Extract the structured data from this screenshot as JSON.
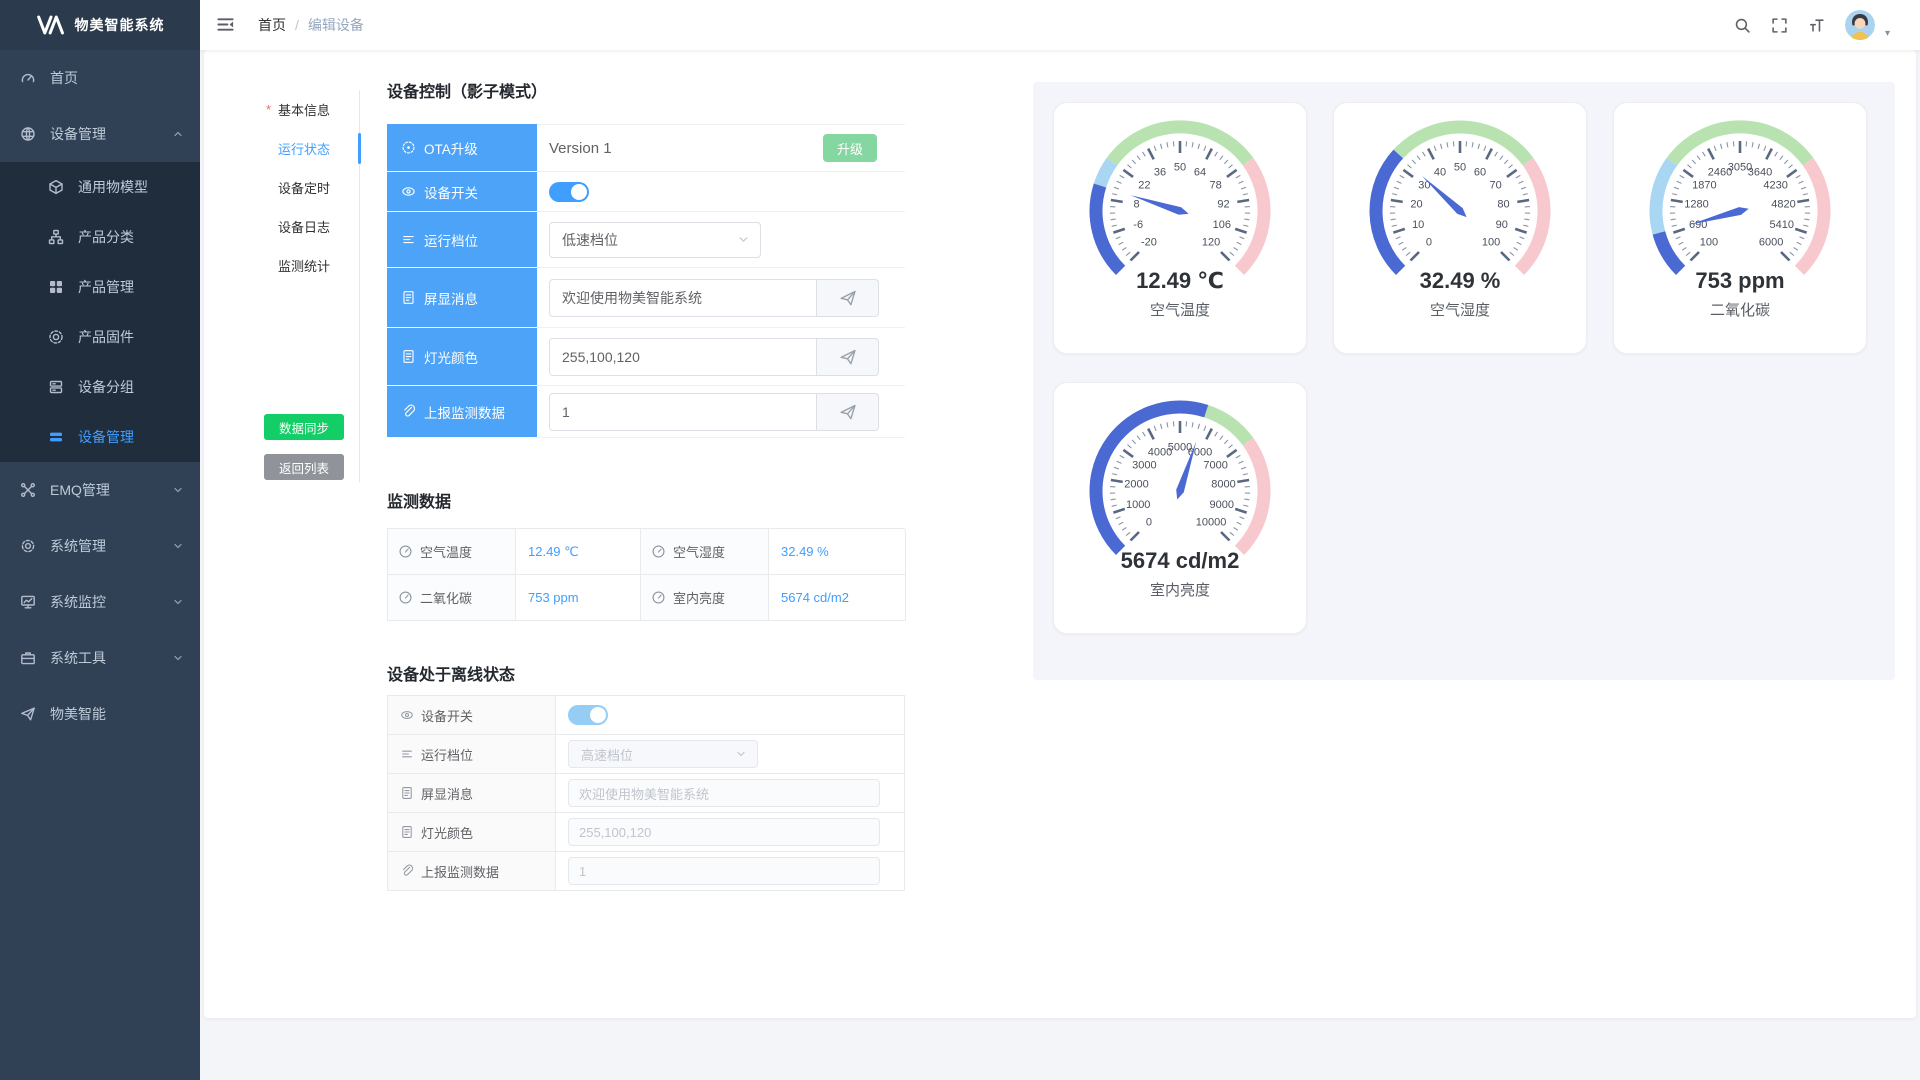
{
  "app": {
    "title": "物美智能系统"
  },
  "header": {
    "breadcrumb": [
      "首页",
      "编辑设备"
    ],
    "right_icons": [
      "search-icon",
      "fullscreen-icon",
      "font-size-icon",
      "avatar",
      "caret-down-icon"
    ]
  },
  "sidebar": {
    "items": [
      {
        "label": "首页",
        "icon": "dashboard-icon"
      },
      {
        "label": "设备管理",
        "icon": "devices-icon",
        "state": "expanded",
        "children": [
          {
            "label": "通用物模型",
            "icon": "cube-icon"
          },
          {
            "label": "产品分类",
            "icon": "sitemap-icon"
          },
          {
            "label": "产品管理",
            "icon": "grid-icon"
          },
          {
            "label": "产品固件",
            "icon": "firmware-icon"
          },
          {
            "label": "设备分组",
            "icon": "server-icon"
          },
          {
            "label": "设备管理",
            "icon": "list-icon",
            "active": true
          }
        ]
      },
      {
        "label": "EMQ管理",
        "icon": "emq-icon",
        "state": "collapsed"
      },
      {
        "label": "系统管理",
        "icon": "gear-icon",
        "state": "collapsed"
      },
      {
        "label": "系统监控",
        "icon": "monitor-icon",
        "state": "collapsed"
      },
      {
        "label": "系统工具",
        "icon": "toolbox-icon",
        "state": "collapsed"
      },
      {
        "label": "物美智能",
        "icon": "send-icon"
      }
    ]
  },
  "anchor": {
    "items": [
      {
        "label": "基本信息",
        "required": true
      },
      {
        "label": "运行状态",
        "active": true
      },
      {
        "label": "设备定时"
      },
      {
        "label": "设备日志"
      },
      {
        "label": "监测统计"
      }
    ],
    "sync_button": "数据同步",
    "back_button": "返回列表"
  },
  "shadow": {
    "title": "设备控制（影子模式）",
    "rows": [
      {
        "icon": "clock-icon",
        "label": "OTA升级",
        "type": "text_button",
        "value": "Version 1",
        "button": "升级"
      },
      {
        "icon": "eye-icon",
        "label": "设备开关",
        "type": "toggle",
        "on": true
      },
      {
        "icon": "lines-icon",
        "label": "运行档位",
        "type": "select",
        "value": "低速档位"
      },
      {
        "icon": "doc-icon",
        "label": "屏显消息",
        "type": "input_send",
        "value": "欢迎使用物美智能系统"
      },
      {
        "icon": "doc-icon",
        "label": "灯光颜色",
        "type": "input_send",
        "value": "255,100,120"
      },
      {
        "icon": "clip-icon",
        "label": "上报监测数据",
        "type": "input_send",
        "value": "1"
      }
    ]
  },
  "monitor": {
    "title": "监测数据",
    "cells": [
      {
        "icon": "gauge-mini-icon",
        "label": "空气温度",
        "value": "12.49 ℃"
      },
      {
        "icon": "gauge-mini-icon",
        "label": "空气湿度",
        "value": "32.49 %"
      },
      {
        "icon": "gauge-mini-icon",
        "label": "二氧化碳",
        "value": "753 ppm"
      },
      {
        "icon": "gauge-mini-icon",
        "label": "室内亮度",
        "value": "5674 cd/m2"
      }
    ]
  },
  "offline": {
    "title": "设备处于离线状态",
    "rows": [
      {
        "icon": "eye-icon",
        "label": "设备开关",
        "type": "toggle",
        "on": true
      },
      {
        "icon": "lines-icon",
        "label": "运行档位",
        "type": "select",
        "value": "高速档位"
      },
      {
        "icon": "doc-icon",
        "label": "屏显消息",
        "type": "input",
        "value": "欢迎使用物美智能系统"
      },
      {
        "icon": "doc-icon",
        "label": "灯光颜色",
        "type": "input",
        "value": "255,100,120"
      },
      {
        "icon": "clip-icon",
        "label": "上报监测数据",
        "type": "input",
        "value": "1"
      }
    ]
  },
  "chart_data": [
    {
      "type": "gauge",
      "title": "空气温度",
      "value": 12.49,
      "display": "12.49 ℃",
      "min": -20,
      "max": 120,
      "tick_labels": [
        "-20",
        "-6",
        "8",
        "22",
        "36",
        "50",
        "64",
        "78",
        "92",
        "106",
        "120"
      ],
      "segments": [
        [
          0.3,
          "#a9d6f3"
        ],
        [
          0.7,
          "#b9e2b1"
        ],
        [
          1,
          "#f7c9ce"
        ]
      ],
      "progress_color": "#4a69d2"
    },
    {
      "type": "gauge",
      "title": "空气湿度",
      "value": 32.49,
      "display": "32.49 %",
      "min": 0,
      "max": 100,
      "tick_labels": [
        "0",
        "10",
        "20",
        "30",
        "40",
        "50",
        "60",
        "70",
        "80",
        "90",
        "100"
      ],
      "segments": [
        [
          0.3,
          "#a9d6f3"
        ],
        [
          0.7,
          "#b9e2b1"
        ],
        [
          1,
          "#f7c9ce"
        ]
      ],
      "progress_color": "#4a69d2"
    },
    {
      "type": "gauge",
      "title": "二氧化碳",
      "value": 753,
      "display": "753 ppm",
      "min": 100,
      "max": 6000,
      "tick_labels": [
        "100",
        "690",
        "1280",
        "1870",
        "2460",
        "3050",
        "3640",
        "4230",
        "4820",
        "5410",
        "6000"
      ],
      "segments": [
        [
          0.3,
          "#a9d6f3"
        ],
        [
          0.7,
          "#b9e2b1"
        ],
        [
          1,
          "#f7c9ce"
        ]
      ],
      "progress_color": "#4a69d2"
    },
    {
      "type": "gauge",
      "title": "室内亮度",
      "value": 5674,
      "display": "5674 cd/m2",
      "min": 0,
      "max": 10000,
      "tick_labels": [
        "0",
        "1000",
        "2000",
        "3000",
        "4000",
        "5000",
        "6000",
        "7000",
        "8000",
        "9000",
        "10000"
      ],
      "segments": [
        [
          0.3,
          "#a9d6f3"
        ],
        [
          0.7,
          "#b9e2b1"
        ],
        [
          1,
          "#f7c9ce"
        ]
      ],
      "progress_color": "#4a69d2"
    }
  ],
  "colors": {
    "primary": "#409EFF",
    "label_blue": "#4da3f7",
    "sync_green": "#13ce66",
    "back_gray": "#909399",
    "upgrade_green": "#85d7a1",
    "value_blue": "#409EFF",
    "sidebar_bg": "#304156",
    "submenu_bg": "#1f2d3d",
    "panel_bg": "#f4f5fa"
  }
}
